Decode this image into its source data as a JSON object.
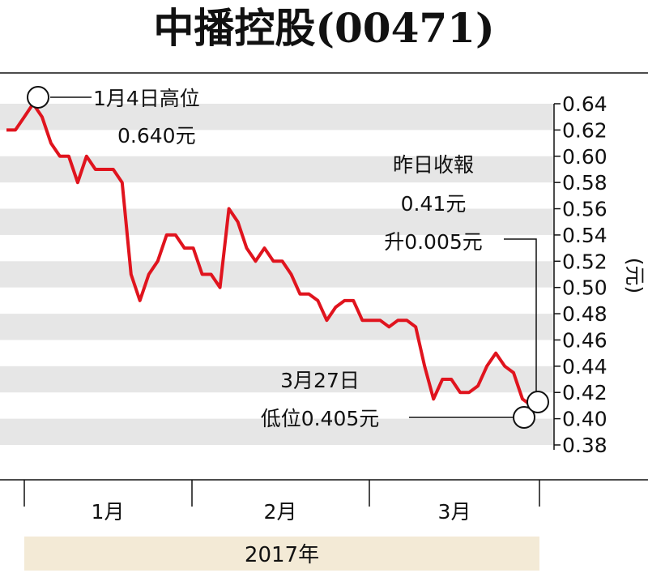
{
  "chart_data": {
    "type": "line",
    "title": "中播控股(00471)",
    "ylabel": "(元)",
    "ylim": [
      0.38,
      0.64
    ],
    "y_ticks": [
      "0.64",
      "0.62",
      "0.60",
      "0.58",
      "0.56",
      "0.54",
      "0.52",
      "0.50",
      "0.48",
      "0.46",
      "0.44",
      "0.42",
      "0.40",
      "0.38"
    ],
    "x_labels": [
      "1月",
      "2月",
      "3月"
    ],
    "year_label": "2017年",
    "grid": "horizontal bands",
    "line_color": "#e0141e",
    "band_color": "#e6e6e6",
    "year_band_color": "#f3ead6",
    "series": [
      {
        "values": [
          0.62,
          0.62,
          0.63,
          0.64,
          0.63,
          0.61,
          0.6,
          0.6,
          0.58,
          0.6,
          0.59,
          0.59,
          0.59,
          0.58,
          0.51,
          0.49,
          0.51,
          0.52,
          0.54,
          0.54,
          0.53,
          0.53,
          0.51,
          0.51,
          0.5,
          0.56,
          0.55,
          0.53,
          0.52,
          0.53,
          0.52,
          0.52,
          0.51,
          0.495,
          0.495,
          0.49,
          0.475,
          0.485,
          0.49,
          0.49,
          0.475,
          0.475,
          0.475,
          0.47,
          0.475,
          0.475,
          0.47,
          0.44,
          0.415,
          0.43,
          0.43,
          0.42,
          0.42,
          0.425,
          0.44,
          0.45,
          0.44,
          0.435,
          0.415,
          0.41
        ]
      }
    ],
    "annotations": {
      "high_line1": "1月4日高位",
      "high_line2": "0.640元",
      "close_line1": "昨日收報",
      "close_line2": "0.41元",
      "close_line3": "升0.005元",
      "low_line1": "3月27日",
      "low_line2": "低位0.405元"
    }
  }
}
